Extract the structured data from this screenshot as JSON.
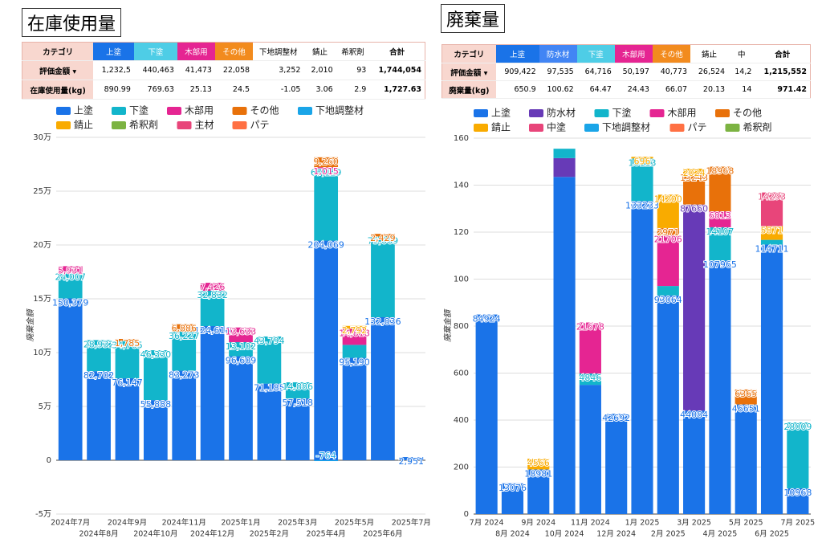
{
  "titles": [
    "在庫使用量",
    "廃棄量"
  ],
  "tables": [
    {
      "header": [
        "カテゴリ",
        "上塗",
        "下塗",
        "木部用",
        "その他",
        "下地調整材",
        "錆止",
        "希釈剤",
        "合計"
      ],
      "header_colors": [
        null,
        "#1a73e8",
        "#4ecde6",
        "#e52592",
        "#f28b1e",
        null,
        null,
        null,
        null
      ],
      "rows": [
        [
          "評価金額 ▾",
          "1,232,5",
          "440,463",
          "41,473",
          "22,058",
          "3,252",
          "2,010",
          "93",
          "1,744,054"
        ],
        [
          "在庫使用量(kg)",
          "890.99",
          "769.63",
          "25.13",
          "24.5",
          "-1.05",
          "3.06",
          "2.9",
          "1,727.63"
        ]
      ]
    },
    {
      "header": [
        "カテゴリ",
        "上塗",
        "防水材",
        "下塗",
        "木部用",
        "その他",
        "錆止",
        "中",
        "合計"
      ],
      "header_colors": [
        null,
        "#1a73e8",
        "#4285f4",
        "#4ecde6",
        "#e52592",
        "#f28b1e",
        null,
        null,
        null
      ],
      "rows": [
        [
          "評価金額 ▾",
          "909,422",
          "97,535",
          "64,716",
          "50,197",
          "40,773",
          "26,524",
          "14,2",
          "1,215,552"
        ],
        [
          "廃棄量(kg)",
          "650.9",
          "100.62",
          "64.47",
          "24.43",
          "66.07",
          "20.13",
          "14",
          "971.42"
        ]
      ]
    }
  ],
  "chart_data": [
    {
      "type": "bar",
      "stacked": true,
      "ylabel": "廃棄金額",
      "categories": [
        "2024年7月",
        "2024年8月",
        "2024年9月",
        "2024年10月",
        "2024年11月",
        "2024年12月",
        "2025年1月",
        "2025年2月",
        "2025年3月",
        "2025年4月",
        "2025年5月",
        "2025年6月",
        "2025年7月"
      ],
      "ylim": [
        -50000,
        300000
      ],
      "yticks": [
        {
          "value": -50000,
          "label": "-5万"
        },
        0,
        {
          "value": 50000,
          "label": "5万"
        },
        {
          "value": 100000,
          "label": "10万"
        },
        {
          "value": 150000,
          "label": "15万"
        },
        {
          "value": 200000,
          "label": "20万"
        },
        {
          "value": 250000,
          "label": "25万"
        },
        {
          "value": 300000,
          "label": "30万"
        }
      ],
      "grid": true,
      "series": [
        {
          "name": "上塗",
          "color": "#1a73e8",
          "values": [
            150379,
            82702,
            76147,
            55888,
            83273,
            124616,
            96609,
            71185,
            57518,
            204069,
            95190,
            132836,
            2951
          ],
          "value_labels": [
            "150,379",
            "82,702",
            "76,147",
            "55,888",
            "83,273",
            "124,616",
            "96,609",
            "71,185",
            "57,518",
            "204,069",
            "95,190",
            "132,836",
            "2,951"
          ]
        },
        {
          "name": "下塗",
          "color": "#12b5cb",
          "values": [
            24007,
            28932,
            34765,
            46330,
            36227,
            32832,
            13102,
            43794,
            14886,
            67129,
            12000,
            75069,
            null
          ],
          "value_labels": [
            "24,007",
            "28,932",
            "34,765",
            "46,330",
            "36,227",
            "32,832",
            "13,102",
            "43,794",
            "14,886",
            "67,129",
            null,
            "75,069",
            null
          ]
        },
        {
          "name": "木部用",
          "color": "#e52592",
          "values": [
            5931,
            null,
            null,
            null,
            null,
            7426,
            13633,
            null,
            null,
            1015,
            14818,
            null,
            null
          ],
          "value_labels": [
            "5,931",
            null,
            null,
            null,
            null,
            "7,426",
            "13,633",
            null,
            null,
            "1,015",
            "14,818",
            null,
            null
          ]
        },
        {
          "name": "その他",
          "color": "#e8710a",
          "values": [
            null,
            null,
            1785,
            null,
            6886,
            null,
            null,
            null,
            null,
            9260,
            null,
            2429,
            null
          ],
          "value_labels": [
            null,
            null,
            "1,785",
            null,
            "6,886",
            null,
            null,
            null,
            null,
            "9,260",
            null,
            "2,429",
            null
          ]
        },
        {
          "name": "下地調整材",
          "color": "#1aa5e8",
          "values": [
            null,
            null,
            null,
            null,
            null,
            null,
            null,
            null,
            null,
            -764,
            null,
            null,
            null
          ],
          "value_labels": [
            null,
            null,
            null,
            null,
            null,
            null,
            null,
            null,
            null,
            "-764",
            null,
            null,
            null
          ]
        },
        {
          "name": "錆止",
          "color": "#f9ab00",
          "values": [
            null,
            null,
            null,
            null,
            null,
            null,
            null,
            null,
            null,
            null,
            2792,
            null,
            null
          ],
          "value_labels": [
            null,
            null,
            null,
            null,
            null,
            null,
            null,
            null,
            null,
            null,
            "2,792",
            null,
            null
          ]
        },
        {
          "name": "希釈剤",
          "color": "#7cb342",
          "values": [
            null,
            null,
            null,
            null,
            null,
            null,
            null,
            null,
            null,
            null,
            null,
            null,
            null
          ]
        },
        {
          "name": "主材",
          "color": "#e8457a",
          "values": [
            null,
            null,
            null,
            null,
            null,
            null,
            null,
            null,
            null,
            null,
            null,
            null,
            null
          ]
        },
        {
          "name": "パテ",
          "color": "#ff7043",
          "values": [
            null,
            null,
            null,
            null,
            null,
            null,
            null,
            null,
            null,
            null,
            null,
            null,
            null
          ]
        }
      ]
    },
    {
      "type": "bar",
      "stacked": true,
      "ylabel": "廃棄金額",
      "categories": [
        "7月 2024",
        "8月 2024",
        "9月 2024",
        "10月 2024",
        "11月 2024",
        "12月 2024",
        "1月 2025",
        "2月 2025",
        "3月 2025",
        "4月 2025",
        "5月 2025",
        "6月 2025",
        "7月 2025"
      ],
      "ylim": [
        0,
        160000
      ],
      "yticks": [
        0,
        {
          "value": 20000,
          "label": "200"
        },
        {
          "value": 40000,
          "label": "400"
        },
        {
          "value": 60000,
          "label": "600"
        },
        {
          "value": 80000,
          "label": "800"
        },
        {
          "value": 100000,
          "label": "100"
        },
        {
          "value": 120000,
          "label": "120"
        },
        {
          "value": 140000,
          "label": "140"
        },
        {
          "value": 160000,
          "label": "160"
        }
      ],
      "grid": true,
      "series": [
        {
          "name": "上塗",
          "color": "#1a73e8",
          "values": [
            84924,
            13076,
            18981,
            143500,
            55000,
            42692,
            133233,
            93064,
            44084,
            107965,
            46651,
            114711,
            10968
          ],
          "value_labels": [
            "84924",
            "13076",
            "18981",
            null,
            null,
            "42692",
            "133233",
            "93064",
            "44084",
            "107965",
            "46651",
            "114711",
            "10968"
          ]
        },
        {
          "name": "防水材",
          "color": "#673ab7",
          "values": [
            null,
            null,
            null,
            8000,
            null,
            null,
            null,
            null,
            87660,
            null,
            null,
            null,
            null
          ],
          "value_labels": [
            null,
            null,
            null,
            null,
            null,
            null,
            null,
            null,
            "87660",
            null,
            null,
            null,
            null
          ]
        },
        {
          "name": "下塗",
          "color": "#12b5cb",
          "values": [
            null,
            null,
            null,
            4000,
            4846,
            null,
            18113,
            4000,
            null,
            14107,
            null,
            2000,
            28009
          ],
          "value_labels": [
            null,
            null,
            null,
            null,
            "4846",
            null,
            "18113",
            null,
            null,
            "14107",
            null,
            null,
            "28009"
          ]
        },
        {
          "name": "木部用",
          "color": "#e52592",
          "values": [
            null,
            null,
            null,
            null,
            21678,
            null,
            null,
            21706,
            null,
            6813,
            null,
            null,
            null
          ],
          "value_labels": [
            null,
            null,
            null,
            null,
            "21678",
            null,
            null,
            "21706",
            null,
            "6813",
            null,
            null,
            null
          ]
        },
        {
          "name": "その他",
          "color": "#e8710a",
          "values": [
            null,
            null,
            null,
            null,
            null,
            null,
            null,
            2971,
            13243,
            18968,
            6365,
            null,
            null
          ],
          "value_labels": [
            null,
            null,
            null,
            null,
            null,
            null,
            null,
            "2971",
            "13243",
            "18968",
            "6365",
            null,
            null
          ]
        },
        {
          "name": "錆止",
          "color": "#f9ab00",
          "values": [
            null,
            null,
            4566,
            null,
            null,
            null,
            696,
            14200,
            2024,
            null,
            null,
            5871,
            null
          ],
          "value_labels": [
            null,
            null,
            "4566",
            null,
            null,
            null,
            "696",
            "14200",
            "2024",
            null,
            null,
            "5871",
            null
          ]
        },
        {
          "name": "中塗",
          "color": "#e8457a",
          "values": [
            null,
            null,
            null,
            null,
            null,
            null,
            null,
            null,
            null,
            null,
            null,
            14293,
            null
          ],
          "value_labels": [
            null,
            null,
            null,
            null,
            null,
            null,
            null,
            null,
            null,
            null,
            null,
            "14293",
            null
          ]
        },
        {
          "name": "下地調整材",
          "color": "#1aa5e8",
          "values": [
            null,
            null,
            null,
            null,
            null,
            null,
            null,
            null,
            null,
            null,
            null,
            null,
            null
          ]
        },
        {
          "name": "パテ",
          "color": "#ff7043",
          "values": [
            null,
            null,
            null,
            null,
            null,
            null,
            null,
            null,
            null,
            null,
            null,
            null,
            null
          ]
        },
        {
          "name": "希釈剤",
          "color": "#7cb342",
          "values": [
            null,
            null,
            null,
            null,
            null,
            null,
            null,
            null,
            null,
            null,
            null,
            null,
            null
          ]
        }
      ]
    }
  ]
}
